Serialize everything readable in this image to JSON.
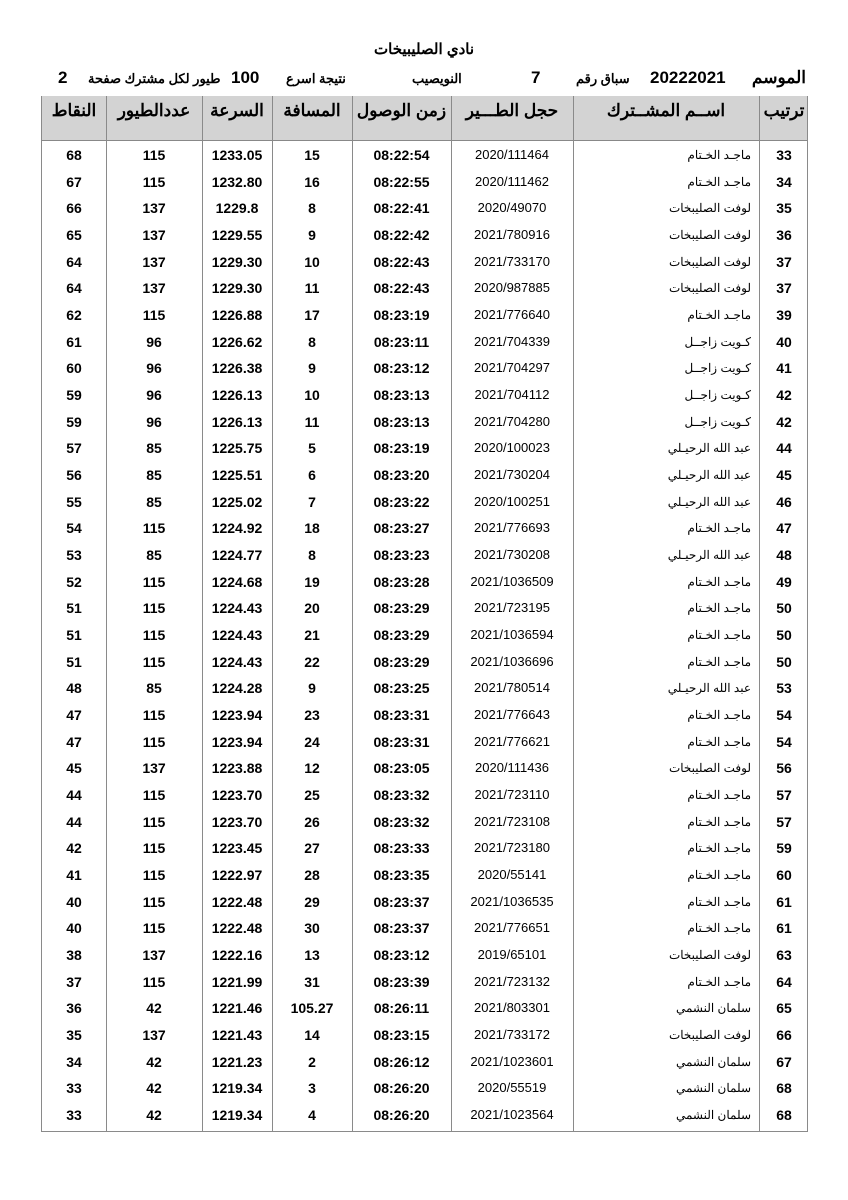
{
  "title": "نادي الصليبيخات",
  "meta": {
    "season_label": "الموسم",
    "season": "20222021",
    "race_label": "سباق رقم",
    "race_no": "7",
    "location": "النويصيب",
    "fastest_label": "نتيجة اسرع",
    "fastest_count": "100",
    "per_member_label": "طيور لكل مشترك صفحة",
    "page": "2"
  },
  "columns": [
    "ترتيب",
    "اســم المشــترك",
    "حجل الطـــير",
    "زمن الوصول",
    "المسافة",
    "السرعة",
    "عددالطيور",
    "النقاط"
  ],
  "rows": [
    [
      "33",
      "ماجـد الخـتام",
      "2020/111464",
      "08:22:54",
      "15",
      "1233.05",
      "115",
      "68"
    ],
    [
      "34",
      "ماجـد الخـتام",
      "2020/111462",
      "08:22:55",
      "16",
      "1232.80",
      "115",
      "67"
    ],
    [
      "35",
      "لوفت الصليبخات",
      "2020/49070",
      "08:22:41",
      "8",
      "1229.8",
      "137",
      "66"
    ],
    [
      "36",
      "لوفت الصليبخات",
      "2021/780916",
      "08:22:42",
      "9",
      "1229.55",
      "137",
      "65"
    ],
    [
      "37",
      "لوفت الصليبخات",
      "2021/733170",
      "08:22:43",
      "10",
      "1229.30",
      "137",
      "64"
    ],
    [
      "37",
      "لوفت الصليبخات",
      "2020/987885",
      "08:22:43",
      "11",
      "1229.30",
      "137",
      "64"
    ],
    [
      "39",
      "ماجـد الخـتام",
      "2021/776640",
      "08:23:19",
      "17",
      "1226.88",
      "115",
      "62"
    ],
    [
      "40",
      "كـويت زاجــل",
      "2021/704339",
      "08:23:11",
      "8",
      "1226.62",
      "96",
      "61"
    ],
    [
      "41",
      "كـويت زاجــل",
      "2021/704297",
      "08:23:12",
      "9",
      "1226.38",
      "96",
      "60"
    ],
    [
      "42",
      "كـويت زاجــل",
      "2021/704112",
      "08:23:13",
      "10",
      "1226.13",
      "96",
      "59"
    ],
    [
      "42",
      "كـويت زاجــل",
      "2021/704280",
      "08:23:13",
      "11",
      "1226.13",
      "96",
      "59"
    ],
    [
      "44",
      "عبد الله الرحيـلي",
      "2020/100023",
      "08:23:19",
      "5",
      "1225.75",
      "85",
      "57"
    ],
    [
      "45",
      "عبد الله الرحيـلي",
      "2021/730204",
      "08:23:20",
      "6",
      "1225.51",
      "85",
      "56"
    ],
    [
      "46",
      "عبد الله الرحيـلي",
      "2020/100251",
      "08:23:22",
      "7",
      "1225.02",
      "85",
      "55"
    ],
    [
      "47",
      "ماجـد الخـتام",
      "2021/776693",
      "08:23:27",
      "18",
      "1224.92",
      "115",
      "54"
    ],
    [
      "48",
      "عبد الله الرحيـلي",
      "2021/730208",
      "08:23:23",
      "8",
      "1224.77",
      "85",
      "53"
    ],
    [
      "49",
      "ماجـد الخـتام",
      "2021/1036509",
      "08:23:28",
      "19",
      "1224.68",
      "115",
      "52"
    ],
    [
      "50",
      "ماجـد الخـتام",
      "2021/723195",
      "08:23:29",
      "20",
      "1224.43",
      "115",
      "51"
    ],
    [
      "50",
      "ماجـد الخـتام",
      "2021/1036594",
      "08:23:29",
      "21",
      "1224.43",
      "115",
      "51"
    ],
    [
      "50",
      "ماجـد الخـتام",
      "2021/1036696",
      "08:23:29",
      "22",
      "1224.43",
      "115",
      "51"
    ],
    [
      "53",
      "عبد الله الرحيـلي",
      "2021/780514",
      "08:23:25",
      "9",
      "1224.28",
      "85",
      "48"
    ],
    [
      "54",
      "ماجـد الخـتام",
      "2021/776643",
      "08:23:31",
      "23",
      "1223.94",
      "115",
      "47"
    ],
    [
      "54",
      "ماجـد الخـتام",
      "2021/776621",
      "08:23:31",
      "24",
      "1223.94",
      "115",
      "47"
    ],
    [
      "56",
      "لوفت الصليبخات",
      "2020/111436",
      "08:23:05",
      "12",
      "1223.88",
      "137",
      "45"
    ],
    [
      "57",
      "ماجـد الخـتام",
      "2021/723110",
      "08:23:32",
      "25",
      "1223.70",
      "115",
      "44"
    ],
    [
      "57",
      "ماجـد الخـتام",
      "2021/723108",
      "08:23:32",
      "26",
      "1223.70",
      "115",
      "44"
    ],
    [
      "59",
      "ماجـد الخـتام",
      "2021/723180",
      "08:23:33",
      "27",
      "1223.45",
      "115",
      "42"
    ],
    [
      "60",
      "ماجـد الخـتام",
      "2020/55141",
      "08:23:35",
      "28",
      "1222.97",
      "115",
      "41"
    ],
    [
      "61",
      "ماجـد الخـتام",
      "2021/1036535",
      "08:23:37",
      "29",
      "1222.48",
      "115",
      "40"
    ],
    [
      "61",
      "ماجـد الخـتام",
      "2021/776651",
      "08:23:37",
      "30",
      "1222.48",
      "115",
      "40"
    ],
    [
      "63",
      "لوفت الصليبخات",
      "2019/65101",
      "08:23:12",
      "13",
      "1222.16",
      "137",
      "38"
    ],
    [
      "64",
      "ماجـد الخـتام",
      "2021/723132",
      "08:23:39",
      "31",
      "1221.99",
      "115",
      "37"
    ],
    [
      "65",
      "سلمان النشمي",
      "2021/803301",
      "08:26:11",
      "105.27",
      "1221.46",
      "42",
      "36"
    ],
    [
      "66",
      "لوفت الصليبخات",
      "2021/733172",
      "08:23:15",
      "14",
      "1221.43",
      "137",
      "35"
    ],
    [
      "67",
      "سلمان النشمي",
      "2021/1023601",
      "08:26:12",
      "2",
      "1221.23",
      "42",
      "34"
    ],
    [
      "68",
      "سلمان النشمي",
      "2020/55519",
      "08:26:20",
      "3",
      "1219.34",
      "42",
      "33"
    ],
    [
      "68",
      "سلمان النشمي",
      "2021/1023564",
      "08:26:20",
      "4",
      "1219.34",
      "42",
      "33"
    ]
  ]
}
